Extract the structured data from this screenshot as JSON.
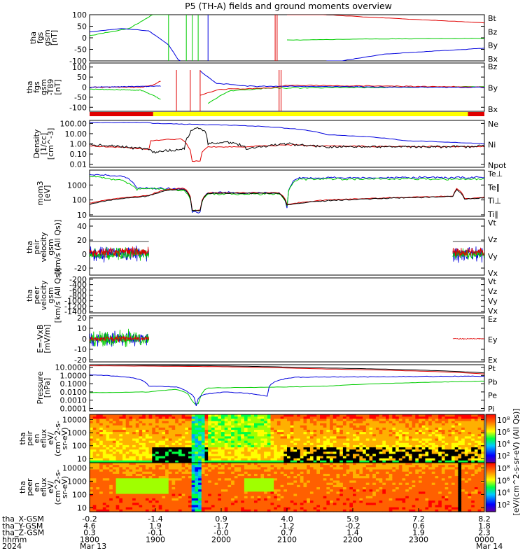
{
  "title": "P5 (TH-A) fields and ground moments overview",
  "colors": {
    "black": "#000000",
    "red": "#e00000",
    "green": "#00cc00",
    "blue": "#0000dd",
    "yellow": "#ffff00",
    "magenta": "#cc00cc"
  },
  "chart_data": {
    "type": "line",
    "x_axis": {
      "rows": [
        {
          "label": "tha_X-GSM",
          "values": [
            "-0.2",
            "-1.4",
            "0.9",
            "4.0",
            "5.9",
            "7.2",
            "8.2"
          ]
        },
        {
          "label": "tha_Y-GSM",
          "values": [
            "4.6",
            "1.9",
            "-1.7",
            "-1.2",
            "-0.2",
            "0.6",
            "1.8"
          ]
        },
        {
          "label": "tha_Z-GSM",
          "values": [
            "0.3",
            "-0.1",
            "-0.0",
            "0.7",
            "1.4",
            "1.9",
            "2.3"
          ]
        },
        {
          "label": "hhmm",
          "values": [
            "1800",
            "1900",
            "2000",
            "2100",
            "2200",
            "2300",
            "0000"
          ]
        },
        {
          "label": "2024",
          "values": [
            "Mar 13",
            "",
            "",
            "",
            "",
            "",
            "Mar 14"
          ]
        }
      ]
    },
    "panels": [
      {
        "ylabel": "tha\nfgs\ngsm\n[nT]",
        "yticks": [
          "100",
          "50",
          "0",
          "-50",
          "-100"
        ],
        "ylim": [
          -100,
          100
        ],
        "legend": [
          {
            "name": "Bt",
            "color": "#000000"
          },
          {
            "name": "Bz",
            "color": "#e00000"
          },
          {
            "name": "By",
            "color": "#00cc00"
          },
          {
            "name": "Bx",
            "color": "#0000dd"
          }
        ]
      },
      {
        "ylabel": "tha\nfgs\ngsm\n-T89\n[nT]",
        "yticks": [
          "100",
          "50",
          "0",
          "-50",
          "-100"
        ],
        "ylim": [
          -120,
          120
        ],
        "legend": [
          {
            "name": "Bz",
            "color": "#e00000"
          },
          {
            "name": "By",
            "color": "#00cc00"
          },
          {
            "name": "Bx",
            "color": "#0000dd"
          }
        ]
      },
      {
        "ylabel": "Density\n[1/cc]\n[cm^-3]",
        "yticks": [
          "100.00",
          "10.00",
          "1.00",
          "0.10",
          "0.01"
        ],
        "ylim": [
          0.005,
          200
        ],
        "scale": "log",
        "legend": [
          {
            "name": "Ne",
            "color": "#e00000"
          },
          {
            "name": "Ni",
            "color": "#000000"
          },
          {
            "name": "Npot",
            "color": "#0000dd"
          }
        ]
      },
      {
        "ylabel": "mom3\n[eV]",
        "yticks": [
          "1000",
          "100",
          "10"
        ],
        "ylim": [
          8,
          10000
        ],
        "scale": "log",
        "legend": [
          {
            "name": "Te⊥",
            "color": "#e00000"
          },
          {
            "name": "Te∥",
            "color": "#000000"
          },
          {
            "name": "Ti⊥",
            "color": "#0000dd"
          },
          {
            "name": "Ti∥",
            "color": "#00cc00"
          }
        ]
      },
      {
        "ylabel": "tha\npeir\nvelocity\ngsm\n[km/s (All Qs)]",
        "yticks": [
          "40",
          "20",
          "0",
          "-20"
        ],
        "ylim": [
          -30,
          50
        ],
        "legend": [
          {
            "name": "Vt",
            "color": "#000000"
          },
          {
            "name": "Vz",
            "color": "#e00000"
          },
          {
            "name": "Vy",
            "color": "#00cc00"
          },
          {
            "name": "Vx",
            "color": "#0000dd"
          }
        ]
      },
      {
        "ylabel": "tha\npeer\nvelocity\ngsm\n[km/s (All Qs)]",
        "yticks": [
          "-200",
          "-400",
          "-600",
          "-800",
          "-1000",
          "-1200",
          "-1400"
        ],
        "ylim": [
          -1450,
          -150
        ],
        "legend": [
          {
            "name": "Vt",
            "color": "#000000"
          },
          {
            "name": "Vz",
            "color": "#e00000"
          },
          {
            "name": "Vy",
            "color": "#00cc00"
          },
          {
            "name": "Vx",
            "color": "#0000dd"
          }
        ]
      },
      {
        "ylabel": "E=-VxB\n[mV/m]",
        "yticks": [
          "20",
          "10",
          "0",
          "-10",
          "-20"
        ],
        "ylim": [
          -22,
          22
        ],
        "legend": [
          {
            "name": "Ez",
            "color": "#e00000"
          },
          {
            "name": "Ey",
            "color": "#00cc00"
          },
          {
            "name": "Ex",
            "color": "#0000dd"
          }
        ]
      },
      {
        "ylabel": "Pressure\n[nPa]",
        "yticks": [
          "10.0000",
          "1.0000",
          "0.1000",
          "0.0100",
          "0.0010",
          "0.0001"
        ],
        "ylim": [
          5e-05,
          20
        ],
        "scale": "log",
        "legend": [
          {
            "name": "Pt",
            "color": "#000000"
          },
          {
            "name": "Pb",
            "color": "#e00000"
          },
          {
            "name": "Pe",
            "color": "#00cc00"
          },
          {
            "name": "Pi",
            "color": "#0000dd"
          }
        ]
      },
      {
        "ylabel": "tha\npeir\nen\neflux\neV/\n(cm^2-s-\nsr-eV)",
        "yticks": [
          "10000",
          "1000",
          "100",
          "10"
        ],
        "ylim": [
          5,
          25000
        ],
        "scale": "log",
        "type": "heatmap"
      },
      {
        "ylabel": "tha\npeer\nen\neflux\neV/\n(cm^2-s-\nsr-eV)",
        "yticks": [
          "10000",
          "1000",
          "100",
          "10"
        ],
        "ylim": [
          5,
          25000
        ],
        "scale": "log",
        "type": "heatmap"
      }
    ],
    "colorbar": {
      "label": "[eV/(cm^2-s-sr-eV) (All Qs)]",
      "ticks_top": [
        "10^8",
        "10^6",
        "10^4",
        "10^2"
      ],
      "ticks_bottom": [
        "10^8",
        "10^6",
        "10^4",
        "10^2"
      ]
    },
    "status_bar": {
      "segments": [
        {
          "from": "1800",
          "to": "1858",
          "color": "red"
        },
        {
          "from": "1858",
          "to": "2345",
          "color": "yellow"
        },
        {
          "from": "2345",
          "to": "0000",
          "color": "red"
        }
      ]
    }
  }
}
